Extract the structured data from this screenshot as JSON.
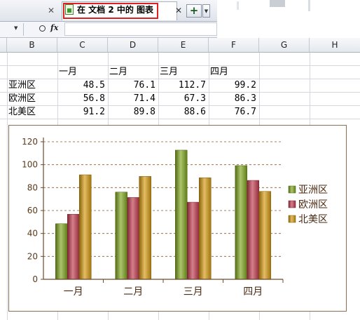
{
  "tabs": {
    "active_title": "在 文档 2 中的 图表",
    "close_symbol": "✕",
    "new_tab_symbol": "+",
    "dropdown_symbol": "▼"
  },
  "formula_bar": {
    "zoom_icon": "magnifier-icon",
    "fx_label": "fx",
    "value": ""
  },
  "columns": [
    "B",
    "C",
    "D",
    "E",
    "F",
    "G",
    "H"
  ],
  "table": {
    "headers": [
      "一月",
      "二月",
      "三月",
      "四月"
    ],
    "rows": [
      {
        "label": "亚洲区",
        "values": [
          "48.5",
          "76.1",
          "112.7",
          "99.2"
        ]
      },
      {
        "label": "欧洲区",
        "values": [
          "56.8",
          "71.4",
          "67.3",
          "86.3"
        ]
      },
      {
        "label": "北美区",
        "values": [
          "91.2",
          "89.8",
          "88.6",
          "76.7"
        ]
      }
    ]
  },
  "chart_data": {
    "type": "bar",
    "categories": [
      "一月",
      "二月",
      "三月",
      "四月"
    ],
    "series": [
      {
        "name": "亚洲区",
        "values": [
          48.5,
          76.1,
          112.7,
          99.2
        ],
        "color": "#7fa61e"
      },
      {
        "name": "欧洲区",
        "values": [
          56.8,
          71.4,
          67.3,
          86.3
        ],
        "color": "#c23a4e"
      },
      {
        "name": "北美区",
        "values": [
          91.2,
          89.8,
          88.6,
          76.7
        ],
        "color": "#d69a10"
      }
    ],
    "ylim": [
      0,
      120
    ],
    "yticks": [
      "0",
      "20",
      "40",
      "60",
      "80",
      "100",
      "120"
    ],
    "grid": true,
    "legend": "right",
    "title": "",
    "xlabel": "",
    "ylabel": ""
  }
}
